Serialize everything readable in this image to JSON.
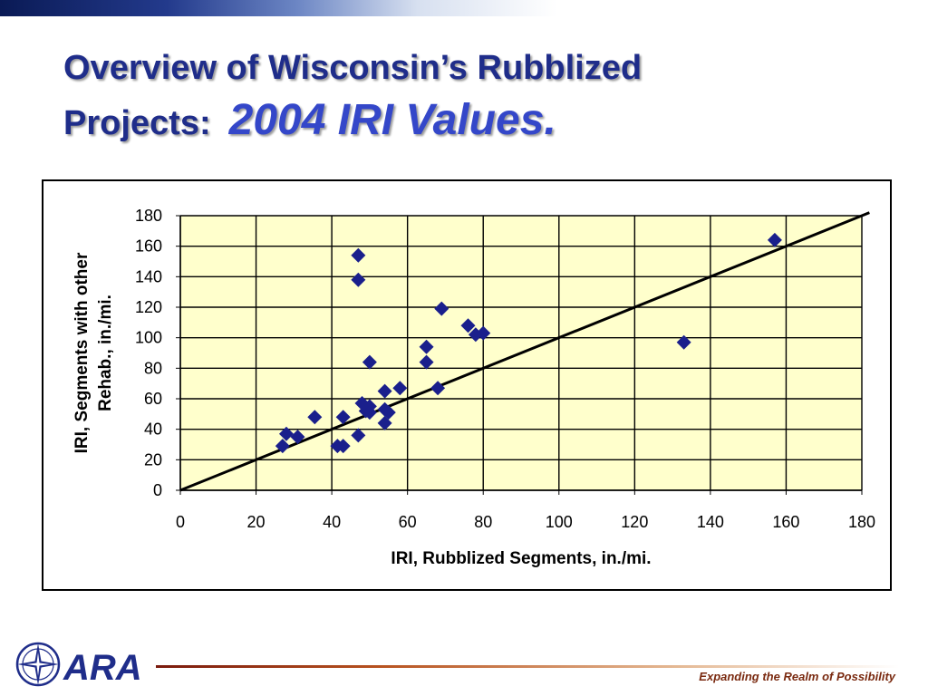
{
  "slide": {
    "title_line1": "Overview of Wisconsin’s Rubblized",
    "title_line2_prefix": "Projects:",
    "title_line2_accent": "2004 IRI Values.",
    "tagline": "Expanding the Realm of Possibility",
    "logo_text": "ARA"
  },
  "colors": {
    "title": "#1f2d8a",
    "title_accent": "#3447c9",
    "plot_background": "#ffffcc",
    "marker": "#1a1f8c",
    "reference_line": "#000000"
  },
  "chart_data": {
    "type": "scatter",
    "title": "",
    "xlabel": "IRI, Rubblized Segments, in./mi.",
    "ylabel": "IRI, Segments with other Rehab., in./mi.",
    "xlim": [
      0,
      180
    ],
    "ylim": [
      0,
      180
    ],
    "x_ticks": [
      "0",
      "20",
      "40",
      "60",
      "80",
      "100",
      "120",
      "140",
      "160",
      "180"
    ],
    "y_ticks": [
      "0",
      "20",
      "40",
      "60",
      "80",
      "100",
      "120",
      "140",
      "160",
      "180"
    ],
    "grid": true,
    "legend": "none",
    "marker": "diamond",
    "reference_line": {
      "type": "equality",
      "from": [
        0,
        0
      ],
      "to": [
        182,
        182
      ]
    },
    "series": [
      {
        "points": [
          [
            27,
            29
          ],
          [
            28,
            37
          ],
          [
            31,
            35
          ],
          [
            35.5,
            48
          ],
          [
            41.5,
            29
          ],
          [
            43,
            29
          ],
          [
            43,
            48
          ],
          [
            47,
            36
          ],
          [
            47,
            154
          ],
          [
            47,
            138
          ],
          [
            48,
            57
          ],
          [
            49,
            52
          ],
          [
            50,
            84
          ],
          [
            50,
            55
          ],
          [
            50,
            51
          ],
          [
            54,
            65
          ],
          [
            54,
            53
          ],
          [
            54,
            44
          ],
          [
            55,
            51
          ],
          [
            58,
            67
          ],
          [
            65,
            94
          ],
          [
            65,
            84
          ],
          [
            68,
            67
          ],
          [
            69,
            119
          ],
          [
            76,
            108
          ],
          [
            78,
            102
          ],
          [
            80,
            103
          ],
          [
            133,
            97
          ],
          [
            157,
            164
          ]
        ]
      }
    ]
  }
}
